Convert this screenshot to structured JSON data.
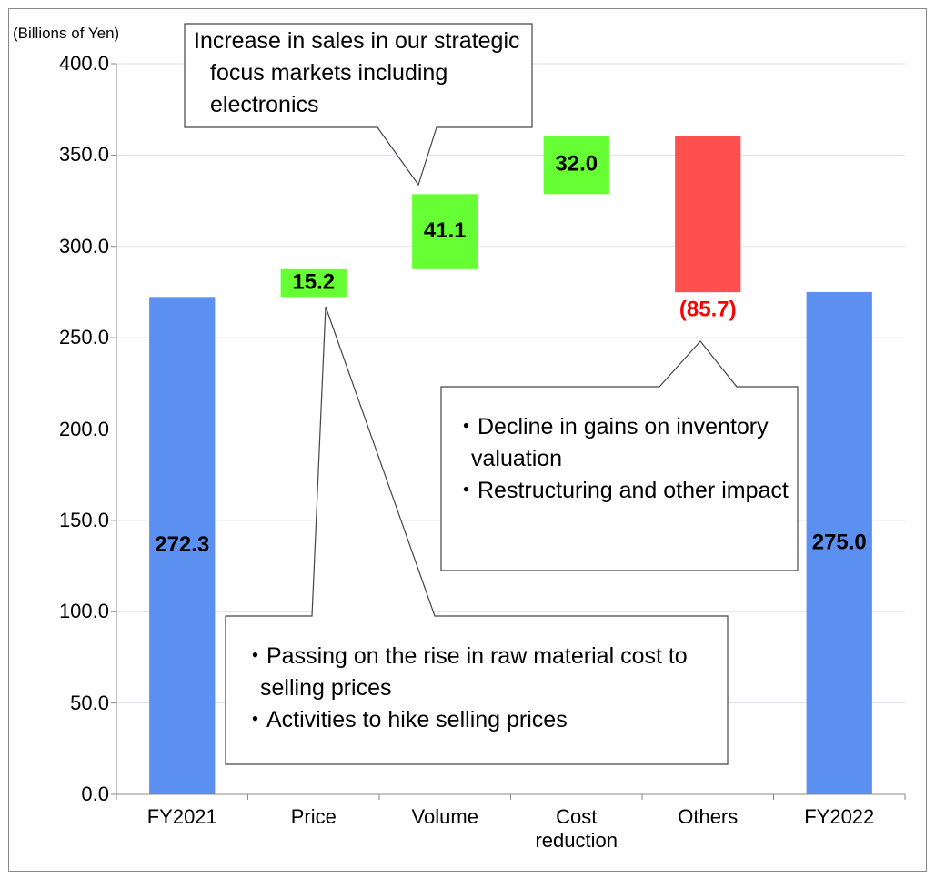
{
  "chart_data": {
    "type": "waterfall",
    "unit_label": "(Billions of Yen)",
    "categories": [
      "FY2021",
      "Price",
      "Volume",
      "Cost reduction",
      "Others",
      "FY2022"
    ],
    "values": [
      272.3,
      15.2,
      41.1,
      32.0,
      -85.7,
      275.0
    ],
    "value_labels": [
      "272.3",
      "15.2",
      "41.1",
      "32.0",
      "(85.7)",
      "275.0"
    ],
    "bar_kinds": [
      "total",
      "change",
      "change",
      "change",
      "change",
      "total"
    ],
    "colors": {
      "total": "#5b8ff0",
      "increase": "#66ff33",
      "decrease": "#ff5050"
    },
    "label_colors": {
      "total": "#000000",
      "increase": "#000000",
      "decrease": "#ff0000"
    },
    "ylim": [
      0,
      400
    ],
    "yticks": [
      {
        "value": 0,
        "label": "0.0"
      },
      {
        "value": 50,
        "label": "50.0"
      },
      {
        "value": 100,
        "label": "100.0"
      },
      {
        "value": 150,
        "label": "150.0"
      },
      {
        "value": 200,
        "label": "200.0"
      },
      {
        "value": 250,
        "label": "250.0"
      },
      {
        "value": 300,
        "label": "300.0"
      },
      {
        "value": 350,
        "label": "350.0"
      },
      {
        "value": 400,
        "label": "400.0"
      }
    ],
    "grid": true,
    "annotations": [
      {
        "lines": [
          "Increase in sales in our strategic focus markets including electronics"
        ]
      },
      {
        "lines": [
          "・Decline in gains on inventory valuation",
          "・Restructuring and other impact"
        ]
      },
      {
        "lines": [
          "・Passing on the rise in raw material cost to selling prices",
          "・Activities to hike selling prices"
        ]
      }
    ]
  }
}
